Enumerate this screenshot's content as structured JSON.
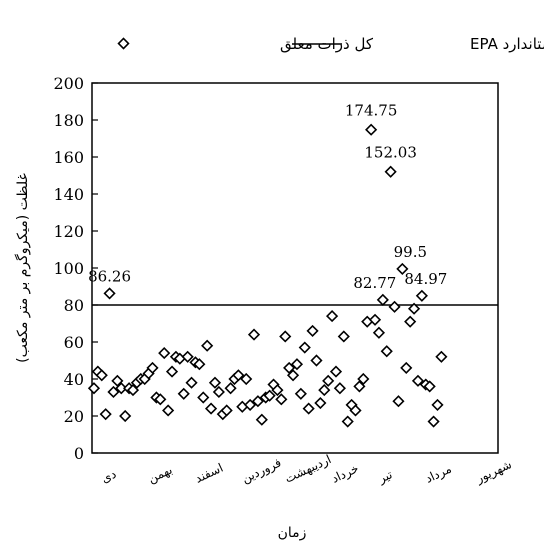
{
  "chart_data": {
    "type": "scatter",
    "legend": {
      "placement": "top",
      "entries": [
        {
          "label": "کل ذرات معلق",
          "marker": "diamond"
        },
        {
          "label": "استاندارد EPA",
          "marker": "line"
        }
      ]
    },
    "xlabel": "زمان",
    "ylabel": "غلظت (میکروگرم بر متر مکعب)",
    "ylim": [
      0,
      200
    ],
    "yticks": [
      0,
      20,
      40,
      60,
      80,
      100,
      120,
      140,
      160,
      180,
      200
    ],
    "xlim": [
      0,
      104
    ],
    "x_categories": [
      {
        "label": "دی",
        "at": 3
      },
      {
        "label": "بهمن",
        "at": 15
      },
      {
        "label": "اسفند",
        "at": 27
      },
      {
        "label": "فروردین",
        "at": 39
      },
      {
        "label": "اردیبهشت",
        "at": 50
      },
      {
        "label": "خرداد",
        "at": 62
      },
      {
        "label": "تیر",
        "at": 74
      },
      {
        "label": "مرداد",
        "at": 86
      },
      {
        "label": "شهریور",
        "at": 99
      }
    ],
    "reference_line": {
      "label": "EPA",
      "value": 80
    },
    "grid": false,
    "series": [
      {
        "name": "کل ذرات معلق",
        "points": [
          {
            "x": 0.5,
            "y": 35
          },
          {
            "x": 1.5,
            "y": 44
          },
          {
            "x": 2.5,
            "y": 42
          },
          {
            "x": 3.5,
            "y": 21
          },
          {
            "x": 4.5,
            "y": 86.26
          },
          {
            "x": 5.5,
            "y": 33
          },
          {
            "x": 6.5,
            "y": 39
          },
          {
            "x": 7.5,
            "y": 35
          },
          {
            "x": 8.5,
            "y": 20
          },
          {
            "x": 9.5,
            "y": 35
          },
          {
            "x": 10.5,
            "y": 34
          },
          {
            "x": 11.5,
            "y": 38
          },
          {
            "x": 12.5,
            "y": 40
          },
          {
            "x": 13.5,
            "y": 40
          },
          {
            "x": 14.5,
            "y": 43
          },
          {
            "x": 15.5,
            "y": 46
          },
          {
            "x": 16.5,
            "y": 30
          },
          {
            "x": 17.5,
            "y": 29
          },
          {
            "x": 18.5,
            "y": 54
          },
          {
            "x": 19.5,
            "y": 23
          },
          {
            "x": 20.5,
            "y": 44
          },
          {
            "x": 21.5,
            "y": 52
          },
          {
            "x": 22.5,
            "y": 51
          },
          {
            "x": 23.5,
            "y": 32
          },
          {
            "x": 24.5,
            "y": 52
          },
          {
            "x": 25.5,
            "y": 38
          },
          {
            "x": 26.5,
            "y": 49
          },
          {
            "x": 27.5,
            "y": 48
          },
          {
            "x": 28.5,
            "y": 30
          },
          {
            "x": 29.5,
            "y": 58
          },
          {
            "x": 30.5,
            "y": 24
          },
          {
            "x": 31.5,
            "y": 38
          },
          {
            "x": 32.5,
            "y": 33
          },
          {
            "x": 33.5,
            "y": 21
          },
          {
            "x": 34.5,
            "y": 23
          },
          {
            "x": 35.5,
            "y": 35
          },
          {
            "x": 36.5,
            "y": 40
          },
          {
            "x": 37.5,
            "y": 42
          },
          {
            "x": 38.5,
            "y": 25
          },
          {
            "x": 39.5,
            "y": 40
          },
          {
            "x": 40.5,
            "y": 26
          },
          {
            "x": 41.5,
            "y": 64
          },
          {
            "x": 42.5,
            "y": 28
          },
          {
            "x": 43.5,
            "y": 18
          },
          {
            "x": 44.5,
            "y": 30
          },
          {
            "x": 45.5,
            "y": 31
          },
          {
            "x": 46.5,
            "y": 37
          },
          {
            "x": 47.5,
            "y": 34
          },
          {
            "x": 48.5,
            "y": 29
          },
          {
            "x": 49.5,
            "y": 63
          },
          {
            "x": 50.5,
            "y": 46
          },
          {
            "x": 51.5,
            "y": 42
          },
          {
            "x": 52.5,
            "y": 48
          },
          {
            "x": 53.5,
            "y": 32
          },
          {
            "x": 54.5,
            "y": 57
          },
          {
            "x": 55.5,
            "y": 24
          },
          {
            "x": 56.5,
            "y": 66
          },
          {
            "x": 57.5,
            "y": 50
          },
          {
            "x": 58.5,
            "y": 27
          },
          {
            "x": 59.5,
            "y": 34
          },
          {
            "x": 60.5,
            "y": 39
          },
          {
            "x": 61.5,
            "y": 74
          },
          {
            "x": 62.5,
            "y": 44
          },
          {
            "x": 63.5,
            "y": 35
          },
          {
            "x": 64.5,
            "y": 63
          },
          {
            "x": 65.5,
            "y": 17
          },
          {
            "x": 66.5,
            "y": 26
          },
          {
            "x": 67.5,
            "y": 23
          },
          {
            "x": 68.5,
            "y": 36
          },
          {
            "x": 69.5,
            "y": 40
          },
          {
            "x": 70.5,
            "y": 71
          },
          {
            "x": 71.5,
            "y": 174.75
          },
          {
            "x": 72.5,
            "y": 72
          },
          {
            "x": 73.5,
            "y": 65
          },
          {
            "x": 74.5,
            "y": 82.77
          },
          {
            "x": 75.5,
            "y": 55
          },
          {
            "x": 76.5,
            "y": 152.03
          },
          {
            "x": 77.5,
            "y": 79
          },
          {
            "x": 78.5,
            "y": 28
          },
          {
            "x": 79.5,
            "y": 99.5
          },
          {
            "x": 80.5,
            "y": 46
          },
          {
            "x": 81.5,
            "y": 71
          },
          {
            "x": 82.5,
            "y": 78
          },
          {
            "x": 83.5,
            "y": 39
          },
          {
            "x": 84.5,
            "y": 84.97
          },
          {
            "x": 85.5,
            "y": 37
          },
          {
            "x": 86.5,
            "y": 36
          },
          {
            "x": 87.5,
            "y": 17
          },
          {
            "x": 88.5,
            "y": 26
          },
          {
            "x": 89.5,
            "y": 52
          }
        ]
      }
    ],
    "data_labels": [
      {
        "text": "86.26",
        "x": 4.5,
        "y": 86.26
      },
      {
        "text": "174.75",
        "x": 71.5,
        "y": 174.75
      },
      {
        "text": "152.03",
        "x": 76.5,
        "y": 152.03
      },
      {
        "text": "99.5",
        "x": 79.5,
        "y": 99.5
      },
      {
        "text": "82.77",
        "x": 74.5,
        "y": 82.77
      },
      {
        "text": "84.97",
        "x": 84.5,
        "y": 84.97
      }
    ]
  }
}
